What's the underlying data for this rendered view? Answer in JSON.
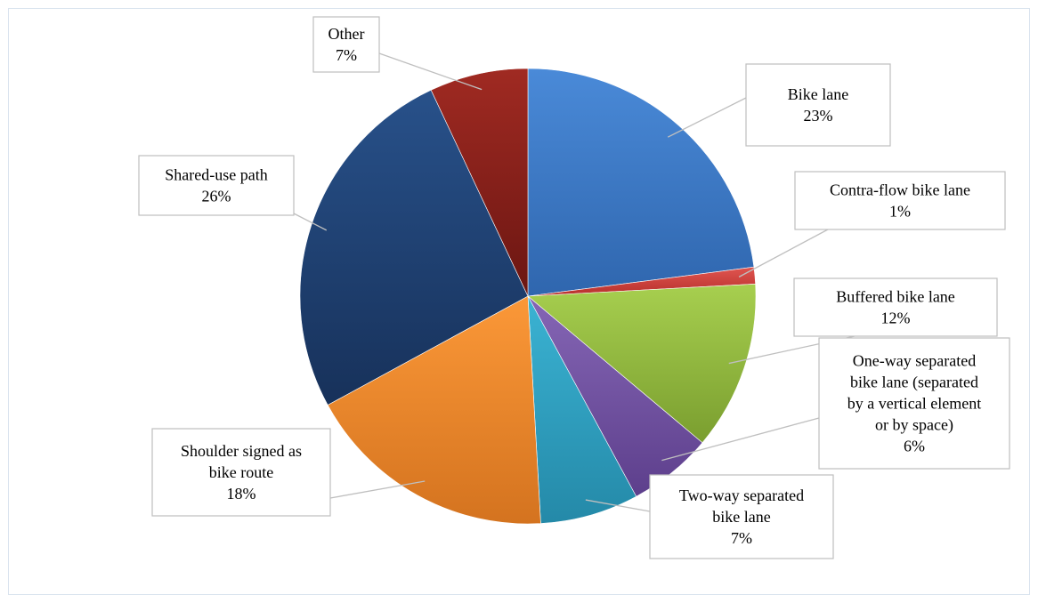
{
  "chart_data": {
    "type": "pie",
    "title": "",
    "start_angle_deg": 0,
    "direction": "clockwise",
    "slices": [
      {
        "label": [
          "Bike lane"
        ],
        "percent_label": "23%",
        "value": 23,
        "color_light": "#4a8ad8",
        "color_dark": "#2f66ae"
      },
      {
        "label": [
          "Contra-flow bike lane"
        ],
        "percent_label": "1%",
        "value": 1.2,
        "color_light": "#e05550",
        "color_dark": "#b7302c"
      },
      {
        "label": [
          "Buffered bike lane"
        ],
        "percent_label": "12%",
        "value": 12,
        "color_light": "#a7cf4f",
        "color_dark": "#7a9e2f"
      },
      {
        "label": [
          "One-way separated",
          "bike lane (separated",
          "by a vertical element",
          "or by space)"
        ],
        "percent_label": "6%",
        "value": 6,
        "color_light": "#8566b5",
        "color_dark": "#5d3f8c"
      },
      {
        "label": [
          "Two-way separated",
          "bike lane"
        ],
        "percent_label": "7%",
        "value": 7,
        "color_light": "#3bb3d3",
        "color_dark": "#2489a8"
      },
      {
        "label": [
          "Shoulder signed as",
          "bike route"
        ],
        "percent_label": "18%",
        "value": 18,
        "color_light": "#fb9838",
        "color_dark": "#d4731f"
      },
      {
        "label": [
          "Shared-use path"
        ],
        "percent_label": "26%",
        "value": 26,
        "color_light": "#28518a",
        "color_dark": "#17315a"
      },
      {
        "label": [
          "Other"
        ],
        "percent_label": "7%",
        "value": 7,
        "color_light": "#a02a22",
        "color_dark": "#6b1612"
      }
    ]
  }
}
